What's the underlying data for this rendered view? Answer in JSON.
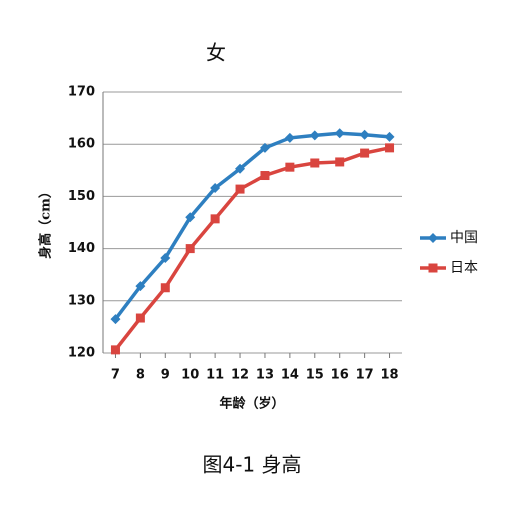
{
  "chart_data": {
    "type": "line",
    "title": "女",
    "caption": "图4-1 身高",
    "xlabel": "年龄（岁）",
    "ylabel": "身高（cm）",
    "x": [
      7,
      8,
      9,
      10,
      11,
      12,
      13,
      14,
      15,
      16,
      17,
      18
    ],
    "xlim": [
      6.5,
      18.5
    ],
    "xticks": [
      7,
      8,
      9,
      10,
      11,
      12,
      13,
      14,
      15,
      16,
      17,
      18
    ],
    "ylim": [
      120,
      170
    ],
    "yticks": [
      120,
      130,
      140,
      150,
      160,
      170
    ],
    "grid": true,
    "legend": "right",
    "series": [
      {
        "name": "中国",
        "color": "#2e7fc0",
        "marker": "diamond",
        "values": [
          126.5,
          132.8,
          138.2,
          146,
          151.6,
          155.3,
          159.3,
          161.2,
          161.7,
          162.1,
          161.8,
          161.4
        ]
      },
      {
        "name": "日本",
        "color": "#d9453f",
        "marker": "square",
        "values": [
          120.6,
          126.7,
          132.5,
          140,
          145.7,
          151.4,
          154,
          155.6,
          156.4,
          156.6,
          158.3,
          159.3
        ]
      }
    ]
  }
}
